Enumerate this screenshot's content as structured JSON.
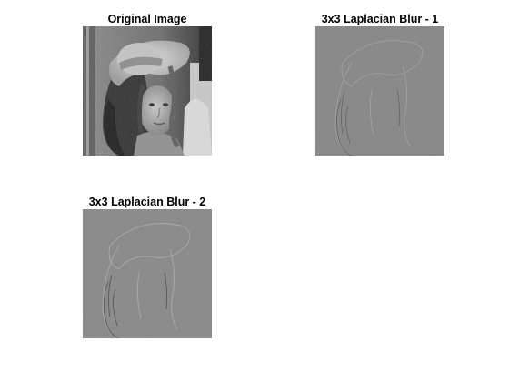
{
  "panels": [
    {
      "title": "Original Image",
      "image": "grayscale-portrait-woman-with-hat"
    },
    {
      "title": "3x3 Laplacian Blur - 1",
      "image": "laplacian-filtered-edges"
    },
    {
      "title": "3x3 Laplacian Blur - 2",
      "image": "laplacian-filtered-edges"
    }
  ],
  "colors": {
    "background": "#ffffff",
    "laplacian_gray": "#7f7f7f"
  }
}
